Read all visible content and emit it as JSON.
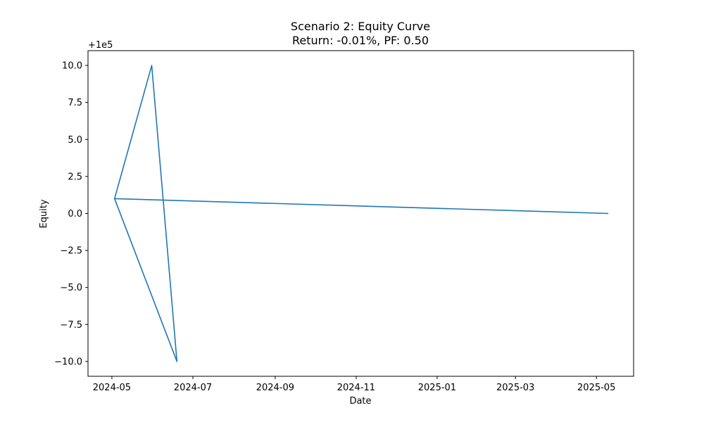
{
  "chart_data": {
    "type": "line",
    "title": "Scenario 2: Equity Curve",
    "subtitle": "Return: -0.01%, PF: 0.50",
    "xlabel": "Date",
    "ylabel": "Equity",
    "y_offset_label": "+1e5",
    "grid": false,
    "legend": "none",
    "xlim": [
      "2024-04-13",
      "2025-05-29"
    ],
    "ylim": [
      -11,
      11
    ],
    "x_ticks": [
      "2024-05",
      "2024-07",
      "2024-09",
      "2024-11",
      "2025-01",
      "2025-03",
      "2025-05"
    ],
    "y_ticks": [
      10.0,
      7.5,
      5.0,
      2.5,
      0.0,
      -2.5,
      -5.0,
      -7.5,
      -10.0
    ],
    "y_tick_labels": [
      "10.0",
      "7.5",
      "5.0",
      "2.5",
      "0.0",
      "−2.5",
      "−5.0",
      "−7.5",
      "−10.0"
    ],
    "series": [
      {
        "color": "#1f77b4",
        "x": [
          "2024-05-03",
          "2024-05-31",
          "2024-06-19",
          "2024-05-03",
          "2025-05-10"
        ],
        "y": [
          1.0,
          10.0,
          -10.0,
          1.0,
          0.0
        ]
      }
    ]
  }
}
